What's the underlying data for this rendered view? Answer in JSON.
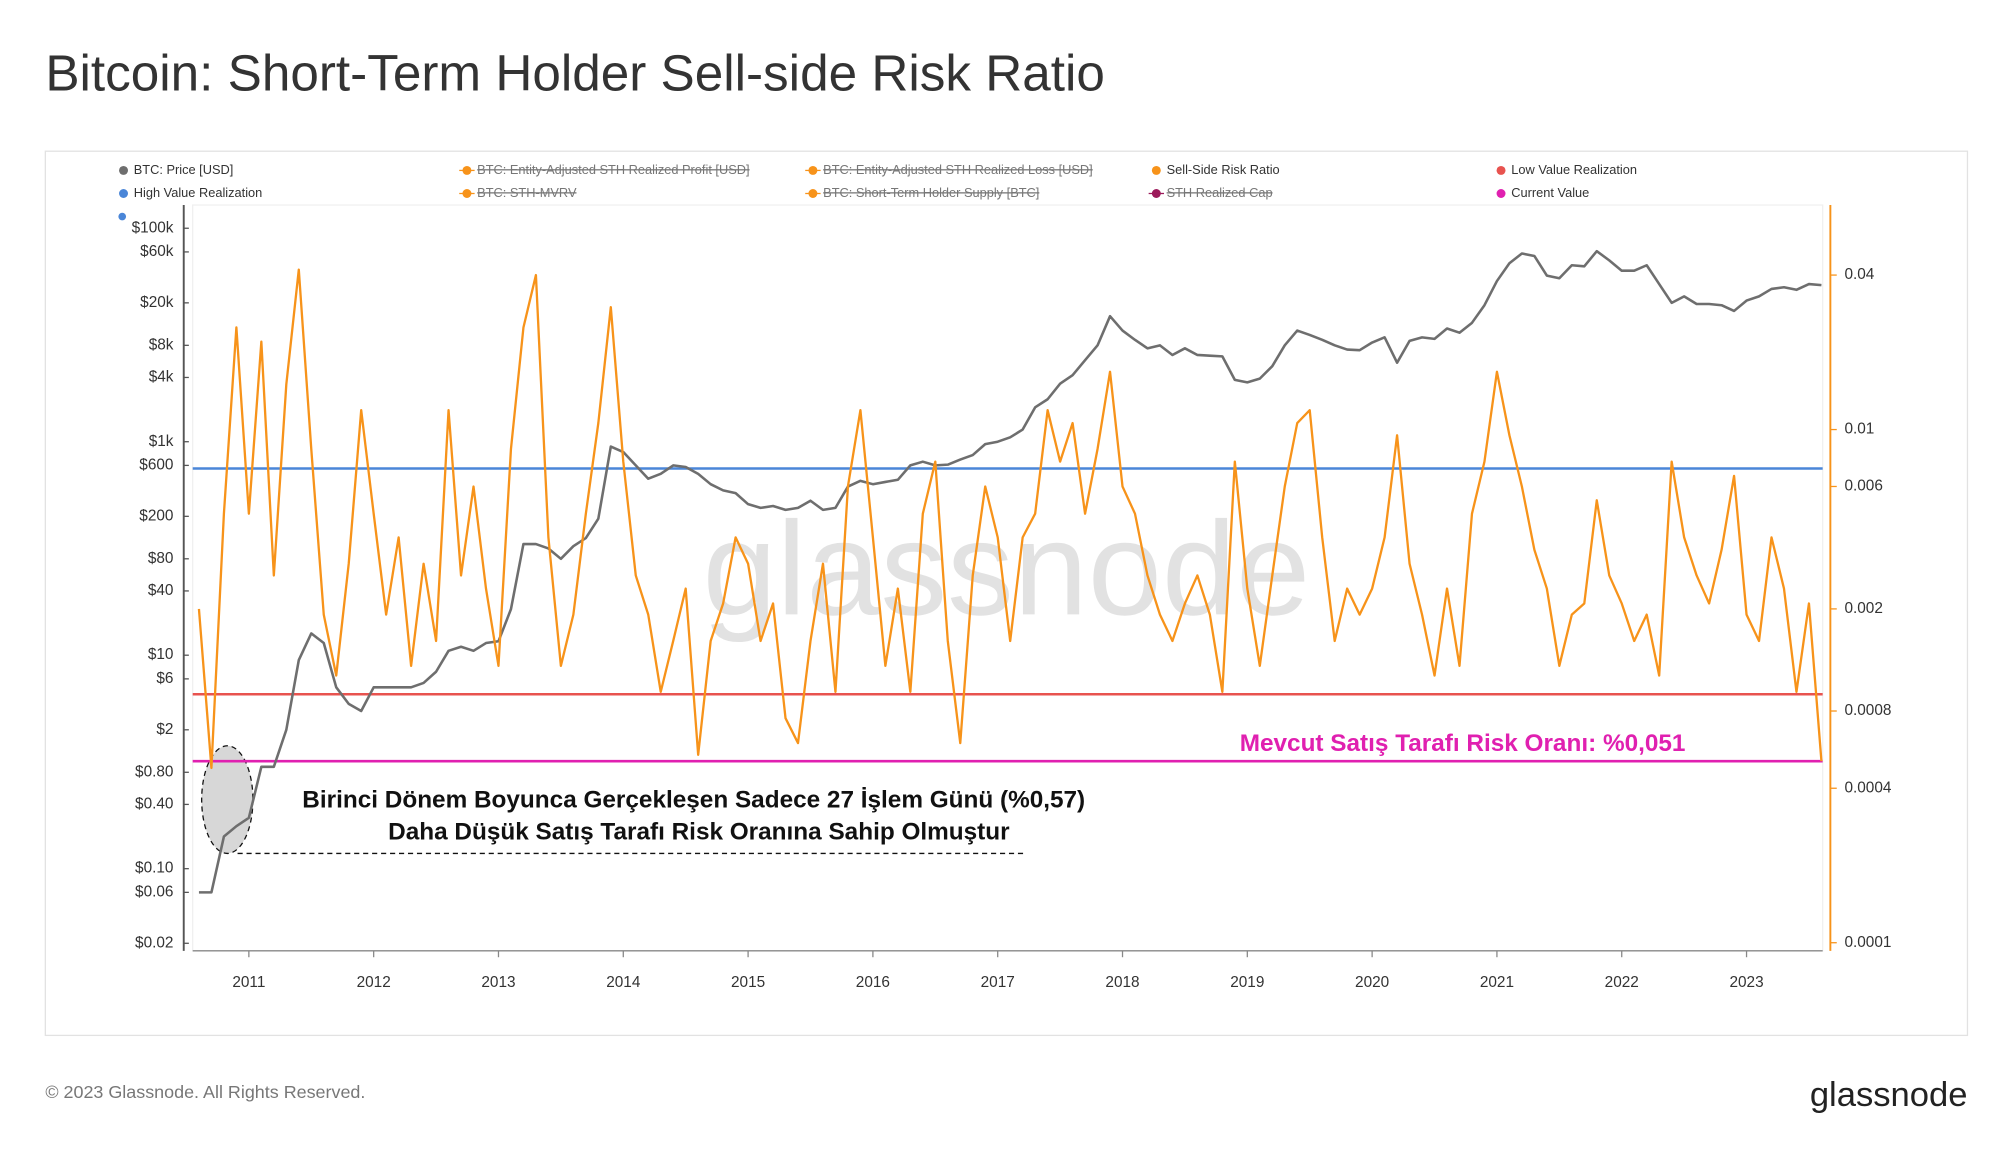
{
  "chart_data": {
    "type": "line",
    "title": "Bitcoin: Short-Term Holder Sell-side Risk Ratio",
    "watermark": "glassnode",
    "footer": "© 2023 Glassnode. All Rights Reserved.",
    "logo": "glassnode",
    "annotations": [
      "Birinci Dönem Boyunca Gerçekleşen Sadece 27 İşlem Günü (%0,57)",
      "Daha Düşük Satış Tarafı Risk Oranına Sahip Olmuştur"
    ],
    "current_label": "Mevcut Satış Tarafı Risk Oranı: %0,051",
    "ylog": true,
    "y2log": true,
    "grid": false,
    "xlim": [
      2010.55,
      2023.61
    ],
    "xticks": [
      2011,
      2012,
      2013,
      2014,
      2015,
      2016,
      2017,
      2018,
      2019,
      2020,
      2021,
      2022,
      2023
    ],
    "ylim": [
      0.017,
      165000
    ],
    "yticks": [
      {
        "value": 100000,
        "label": "$100k"
      },
      {
        "value": 60000,
        "label": "$60k"
      },
      {
        "value": 20000,
        "label": "$20k"
      },
      {
        "value": 8000,
        "label": "$8k"
      },
      {
        "value": 4000,
        "label": "$4k"
      },
      {
        "value": 1000,
        "label": "$1k"
      },
      {
        "value": 600,
        "label": "$600"
      },
      {
        "value": 200,
        "label": "$200"
      },
      {
        "value": 80,
        "label": "$80"
      },
      {
        "value": 40,
        "label": "$40"
      },
      {
        "value": 10,
        "label": "$10"
      },
      {
        "value": 6,
        "label": "$6"
      },
      {
        "value": 2,
        "label": "$2"
      },
      {
        "value": 0.8,
        "label": "$0.80"
      },
      {
        "value": 0.4,
        "label": "$0.40"
      },
      {
        "value": 0.1,
        "label": "$0.10"
      },
      {
        "value": 0.06,
        "label": "$0.06"
      },
      {
        "value": 0.02,
        "label": "$0.02"
      }
    ],
    "y2lim": [
      9.3e-05,
      0.075
    ],
    "y2ticks": [
      0.04,
      0.01,
      0.006,
      0.002,
      0.0008,
      0.0004,
      0.0001
    ],
    "x": [
      2010.6,
      2010.7,
      2010.8,
      2010.9,
      2011.0,
      2011.1,
      2011.2,
      2011.3,
      2011.4,
      2011.5,
      2011.6,
      2011.7,
      2011.8,
      2011.9,
      2012.0,
      2012.1,
      2012.2,
      2012.3,
      2012.4,
      2012.5,
      2012.6,
      2012.7,
      2012.8,
      2012.9,
      2013.0,
      2013.1,
      2013.2,
      2013.3,
      2013.4,
      2013.5,
      2013.6,
      2013.7,
      2013.8,
      2013.9,
      2014.0,
      2014.1,
      2014.2,
      2014.3,
      2014.4,
      2014.5,
      2014.6,
      2014.7,
      2014.8,
      2014.9,
      2015.0,
      2015.1,
      2015.2,
      2015.3,
      2015.4,
      2015.5,
      2015.6,
      2015.7,
      2015.8,
      2015.9,
      2016.0,
      2016.1,
      2016.2,
      2016.3,
      2016.4,
      2016.5,
      2016.6,
      2016.7,
      2016.8,
      2016.9,
      2017.0,
      2017.1,
      2017.2,
      2017.3,
      2017.4,
      2017.5,
      2017.6,
      2017.7,
      2017.8,
      2017.9,
      2018.0,
      2018.1,
      2018.2,
      2018.3,
      2018.4,
      2018.5,
      2018.6,
      2018.7,
      2018.8,
      2018.9,
      2019.0,
      2019.1,
      2019.2,
      2019.3,
      2019.4,
      2019.5,
      2019.6,
      2019.7,
      2019.8,
      2019.9,
      2020.0,
      2020.1,
      2020.2,
      2020.3,
      2020.4,
      2020.5,
      2020.6,
      2020.7,
      2020.8,
      2020.9,
      2021.0,
      2021.1,
      2021.2,
      2021.3,
      2021.4,
      2021.5,
      2021.6,
      2021.7,
      2021.8,
      2021.9,
      2022.0,
      2022.1,
      2022.2,
      2022.3,
      2022.4,
      2022.5,
      2022.6,
      2022.7,
      2022.8,
      2022.9,
      2023.0,
      2023.1,
      2023.2,
      2023.3,
      2023.4,
      2023.5,
      2023.6
    ],
    "series": [
      {
        "name": "BTC: Price [USD]",
        "color": "#6e6e6e",
        "axis": "y",
        "values": [
          0.06,
          0.06,
          0.2,
          0.25,
          0.3,
          0.9,
          0.9,
          2,
          9,
          16,
          13,
          5,
          3.5,
          3,
          5,
          5,
          5,
          5,
          5.5,
          7,
          11,
          12,
          11,
          13,
          13.5,
          27,
          110,
          110,
          100,
          80,
          105,
          125,
          190,
          900,
          800,
          600,
          450,
          500,
          600,
          580,
          500,
          400,
          350,
          330,
          260,
          240,
          250,
          230,
          240,
          280,
          230,
          240,
          380,
          430,
          400,
          420,
          440,
          600,
          650,
          600,
          610,
          680,
          750,
          950,
          1000,
          1100,
          1300,
          2100,
          2500,
          3500,
          4200,
          5800,
          8000,
          15000,
          11000,
          9000,
          7500,
          8000,
          6500,
          7500,
          6500,
          6400,
          6300,
          3800,
          3600,
          3900,
          5100,
          8000,
          11000,
          10000,
          9000,
          8000,
          7300,
          7200,
          8500,
          9500,
          5500,
          8800,
          9500,
          9200,
          11500,
          10500,
          13000,
          19000,
          32000,
          47000,
          58000,
          55000,
          36000,
          34000,
          45000,
          44000,
          61000,
          50000,
          40000,
          40000,
          45000,
          30000,
          20000,
          23000,
          19500,
          19500,
          19000,
          16800,
          21000,
          23000,
          27000,
          28000,
          26500,
          30000,
          29300
        ]
      },
      {
        "name": "BTC: Entity-Adjusted STH Realized Profit [USD]",
        "color": "#f7931a",
        "hidden": true
      },
      {
        "name": "BTC: Entity-Adjusted STH Realized Loss [USD]",
        "color": "#f7931a",
        "hidden": true
      },
      {
        "name": "Sell-Side Risk Ratio",
        "color": "#f7931a",
        "axis": "y2",
        "values": [
          0.002,
          0.00048,
          0.0047,
          0.025,
          0.0047,
          0.022,
          0.0027,
          0.015,
          0.042,
          0.0084,
          0.0019,
          0.0011,
          0.003,
          0.0119,
          0.0047,
          0.0019,
          0.0038,
          0.0012,
          0.003,
          0.0015,
          0.0119,
          0.0027,
          0.006,
          0.0024,
          0.0012,
          0.0084,
          0.025,
          0.04,
          0.0038,
          0.0012,
          0.0019,
          0.0047,
          0.0106,
          0.03,
          0.0075,
          0.0027,
          0.0019,
          0.00095,
          0.0015,
          0.0024,
          0.00054,
          0.0015,
          0.0021,
          0.0038,
          0.003,
          0.0015,
          0.0021,
          0.00075,
          0.0006,
          0.0015,
          0.003,
          0.00095,
          0.006,
          0.0119,
          0.0038,
          0.0012,
          0.0024,
          0.00095,
          0.0047,
          0.0075,
          0.0015,
          0.0006,
          0.0027,
          0.006,
          0.0038,
          0.0015,
          0.0038,
          0.0047,
          0.0119,
          0.0075,
          0.0106,
          0.0047,
          0.0084,
          0.0168,
          0.006,
          0.0047,
          0.0027,
          0.0019,
          0.0015,
          0.0021,
          0.0027,
          0.0019,
          0.00095,
          0.0075,
          0.0024,
          0.0012,
          0.0027,
          0.006,
          0.0106,
          0.0119,
          0.0038,
          0.0015,
          0.0024,
          0.0019,
          0.0024,
          0.0038,
          0.0095,
          0.003,
          0.0019,
          0.0011,
          0.0024,
          0.0012,
          0.0047,
          0.0075,
          0.0168,
          0.0095,
          0.006,
          0.0034,
          0.0024,
          0.0012,
          0.0019,
          0.0021,
          0.0053,
          0.0027,
          0.0021,
          0.0015,
          0.0019,
          0.0011,
          0.0075,
          0.0038,
          0.0027,
          0.0021,
          0.0034,
          0.0066,
          0.0019,
          0.0015,
          0.0038,
          0.0024,
          0.00095,
          0.0021,
          0.00051
        ]
      },
      {
        "name": "Low Value Realization",
        "color": "#e8534f",
        "axis": "y2",
        "value": 0.00093
      },
      {
        "name": "High Value Realization",
        "color": "#4a86d8",
        "axis": "y2",
        "value": 0.00705
      },
      {
        "name": "BTC: STH-MVRV",
        "color": "#f7931a",
        "hidden": true
      },
      {
        "name": "BTC: Short-Term Holder Supply [BTC]",
        "color": "#f7931a",
        "hidden": true
      },
      {
        "name": "STH Realized Cap",
        "color": "#9c1a5a",
        "hidden": true
      },
      {
        "name": "Current Value",
        "color": "#e020b0",
        "axis": "y2",
        "value": 0.00051
      }
    ]
  }
}
